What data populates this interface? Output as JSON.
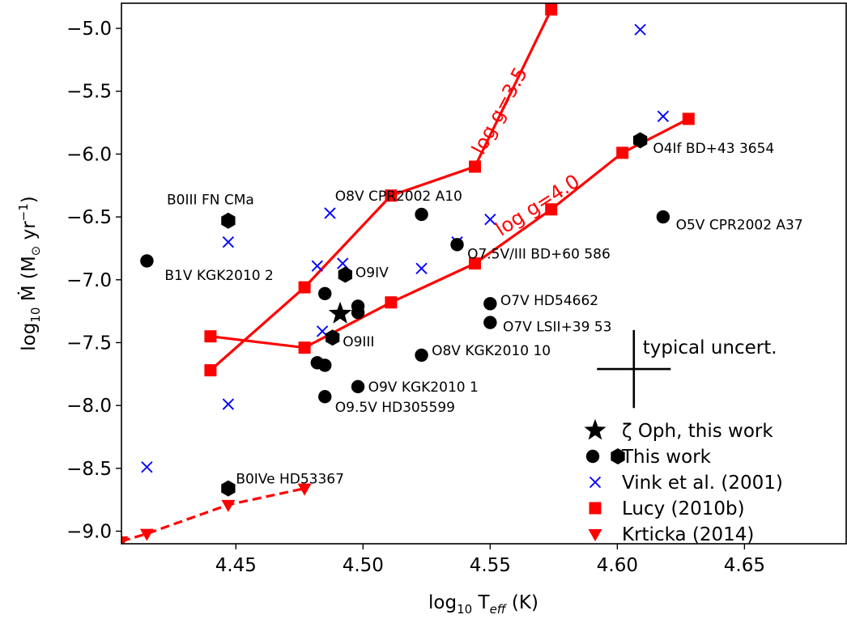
{
  "chart_data": {
    "type": "scatter",
    "xlabel": {
      "base": "log",
      "sub": "10",
      "mid": " T",
      "sub2": "eff",
      "end": " (K)"
    },
    "ylabel": {
      "base": "log",
      "sub": "10",
      "mid": " Ṁ (M",
      "sub2": "⊙",
      "mid2": "  yr",
      "sup": "−1",
      "end": ")"
    },
    "xlim": [
      4.405,
      4.69
    ],
    "ylim": [
      -9.1,
      -4.8
    ],
    "x_ticks": [
      4.45,
      4.5,
      4.55,
      4.6,
      4.65
    ],
    "x_tick_labels": [
      "4.45",
      "4.50",
      "4.55",
      "4.60",
      "4.65"
    ],
    "y_ticks": [
      -5.0,
      -5.5,
      -6.0,
      -6.5,
      -7.0,
      -7.5,
      -8.0,
      -8.5,
      -9.0
    ],
    "y_tick_labels": [
      "−5.0",
      "−5.5",
      "−6.0",
      "−6.5",
      "−7.0",
      "−7.5",
      "−8.0",
      "−8.5",
      "−9.0"
    ],
    "grid": false,
    "legend_position": "bottom-right",
    "colors": {
      "vink": "#0000ff",
      "lucy": "#ff0000",
      "krticka": "#ff0000",
      "this_work": "#000000"
    },
    "series": [
      {
        "key": "zeta_oph",
        "name": "ζ Oph, this work",
        "marker": "star",
        "points": [
          {
            "x": 4.491,
            "y": -7.27
          }
        ]
      },
      {
        "key": "this_work_circles",
        "name": "  This work",
        "marker": "circle",
        "points": [
          {
            "x": 4.415,
            "y": -6.85
          },
          {
            "x": 4.523,
            "y": -6.48
          },
          {
            "x": 4.537,
            "y": -6.72
          },
          {
            "x": 4.618,
            "y": -6.5
          },
          {
            "x": 4.485,
            "y": -7.11
          },
          {
            "x": 4.498,
            "y": -7.21
          },
          {
            "x": 4.498,
            "y": -7.26
          },
          {
            "x": 4.55,
            "y": -7.19
          },
          {
            "x": 4.55,
            "y": -7.34
          },
          {
            "x": 4.482,
            "y": -7.66
          },
          {
            "x": 4.485,
            "y": -7.68
          },
          {
            "x": 4.523,
            "y": -7.6
          },
          {
            "x": 4.498,
            "y": -7.85
          },
          {
            "x": 4.485,
            "y": -7.93
          }
        ]
      },
      {
        "key": "this_work_hexagons",
        "name": "",
        "marker": "hexagon",
        "points": [
          {
            "x": 4.447,
            "y": -6.53
          },
          {
            "x": 4.493,
            "y": -6.96
          },
          {
            "x": 4.488,
            "y": -7.46
          },
          {
            "x": 4.609,
            "y": -5.89
          },
          {
            "x": 4.447,
            "y": -8.66
          }
        ]
      },
      {
        "key": "vink",
        "name": "Vink et al. (2001)",
        "marker": "x",
        "points": [
          {
            "x": 4.447,
            "y": -6.7
          },
          {
            "x": 4.487,
            "y": -6.47
          },
          {
            "x": 4.482,
            "y": -6.89
          },
          {
            "x": 4.492,
            "y": -6.87
          },
          {
            "x": 4.523,
            "y": -6.91
          },
          {
            "x": 4.55,
            "y": -6.52
          },
          {
            "x": 4.537,
            "y": -6.7
          },
          {
            "x": 4.484,
            "y": -7.41
          },
          {
            "x": 4.498,
            "y": -7.24
          },
          {
            "x": 4.447,
            "y": -7.99
          },
          {
            "x": 4.415,
            "y": -8.49
          },
          {
            "x": 4.609,
            "y": -5.01
          },
          {
            "x": 4.618,
            "y": -5.7
          }
        ]
      },
      {
        "key": "lucy_35",
        "name": "Lucy (2010b)",
        "marker": "square",
        "line": "solid",
        "points": [
          {
            "x": 4.44,
            "y": -7.72
          },
          {
            "x": 4.477,
            "y": -7.06
          },
          {
            "x": 4.511,
            "y": -6.33
          },
          {
            "x": 4.544,
            "y": -6.1
          },
          {
            "x": 4.574,
            "y": -4.85
          }
        ]
      },
      {
        "key": "lucy_40",
        "name": "",
        "marker": "square",
        "line": "solid",
        "points": [
          {
            "x": 4.44,
            "y": -7.45
          },
          {
            "x": 4.477,
            "y": -7.54
          },
          {
            "x": 4.511,
            "y": -7.18
          },
          {
            "x": 4.544,
            "y": -6.87
          },
          {
            "x": 4.574,
            "y": -6.44
          },
          {
            "x": 4.602,
            "y": -5.99
          },
          {
            "x": 4.628,
            "y": -5.72
          }
        ]
      },
      {
        "key": "krticka",
        "name": "Krticka (2014)",
        "marker": "triangle-down",
        "line": "dashed",
        "points": [
          {
            "x": 4.405,
            "y": -9.08
          },
          {
            "x": 4.415,
            "y": -9.02
          },
          {
            "x": 4.447,
            "y": -8.79
          },
          {
            "x": 4.477,
            "y": -8.66
          }
        ]
      }
    ],
    "annotations": [
      {
        "text": "B0III FN CMa",
        "x": 4.44,
        "y": -6.4,
        "anchor": "middle"
      },
      {
        "text": "B1V KGK2010 2",
        "x": 4.422,
        "y": -7.0,
        "anchor": "start"
      },
      {
        "text": "O8V CPR2002 A10",
        "x": 4.489,
        "y": -6.37,
        "anchor": "start"
      },
      {
        "text": "O7.5V/III BD+60 586",
        "x": 4.541,
        "y": -6.83,
        "anchor": "start"
      },
      {
        "text": "O9IV",
        "x": 4.497,
        "y": -6.98,
        "anchor": "start"
      },
      {
        "text": "O4If BD+43 3654",
        "x": 4.614,
        "y": -5.99,
        "anchor": "start"
      },
      {
        "text": "O5V CPR2002 A37",
        "x": 4.623,
        "y": -6.6,
        "anchor": "start"
      },
      {
        "text": "O7V HD54662",
        "x": 4.554,
        "y": -7.2,
        "anchor": "start"
      },
      {
        "text": "O7V LSII+39 53",
        "x": 4.555,
        "y": -7.41,
        "anchor": "start"
      },
      {
        "text": "O9III",
        "x": 4.492,
        "y": -7.53,
        "anchor": "start"
      },
      {
        "text": "O8V KGK2010 10",
        "x": 4.527,
        "y": -7.6,
        "anchor": "start"
      },
      {
        "text": "O9V KGK2010 1",
        "x": 4.502,
        "y": -7.89,
        "anchor": "start"
      },
      {
        "text": "O9.5V HD305599",
        "x": 4.489,
        "y": -8.05,
        "anchor": "start"
      },
      {
        "text": "B0IVe HD53367",
        "x": 4.45,
        "y": -8.62,
        "anchor": "start"
      }
    ],
    "line_labels": [
      {
        "text": "log g=3.5",
        "x": 4.556,
        "y": -5.68,
        "rotate": -62
      },
      {
        "text": "log g=4.0",
        "x": 4.57,
        "y": -6.45,
        "rotate": -33
      }
    ],
    "uncertainty": {
      "label": "typical uncert.",
      "x": 4.6065,
      "y": -7.71,
      "xerr": 0.0145,
      "yerr": 0.31
    }
  }
}
